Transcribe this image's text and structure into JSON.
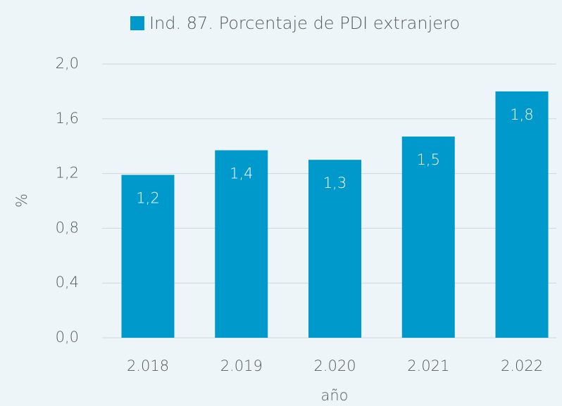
{
  "chart_data": {
    "type": "bar",
    "series": [
      {
        "name": "Ind. 87. Porcentaje de PDI extranjero",
        "color": "#0099cc",
        "values": [
          1.19,
          1.37,
          1.3,
          1.47,
          1.8
        ],
        "value_labels": [
          "1,2",
          "1,4",
          "1,3",
          "1,5",
          "1,8"
        ]
      }
    ],
    "categories": [
      "2.018",
      "2.019",
      "2.020",
      "2.021",
      "2.022"
    ],
    "xlabel": "año",
    "ylabel": "%",
    "ylim": [
      0,
      2
    ],
    "yticks": [
      {
        "value": 0,
        "label": "0,0"
      },
      {
        "value": 0.4,
        "label": "0,4"
      },
      {
        "value": 0.8,
        "label": "0,8"
      },
      {
        "value": 1.2,
        "label": "1,2"
      },
      {
        "value": 1.6,
        "label": "1,6"
      },
      {
        "value": 2,
        "label": "2,0"
      }
    ],
    "grid": true,
    "legend": "top"
  }
}
